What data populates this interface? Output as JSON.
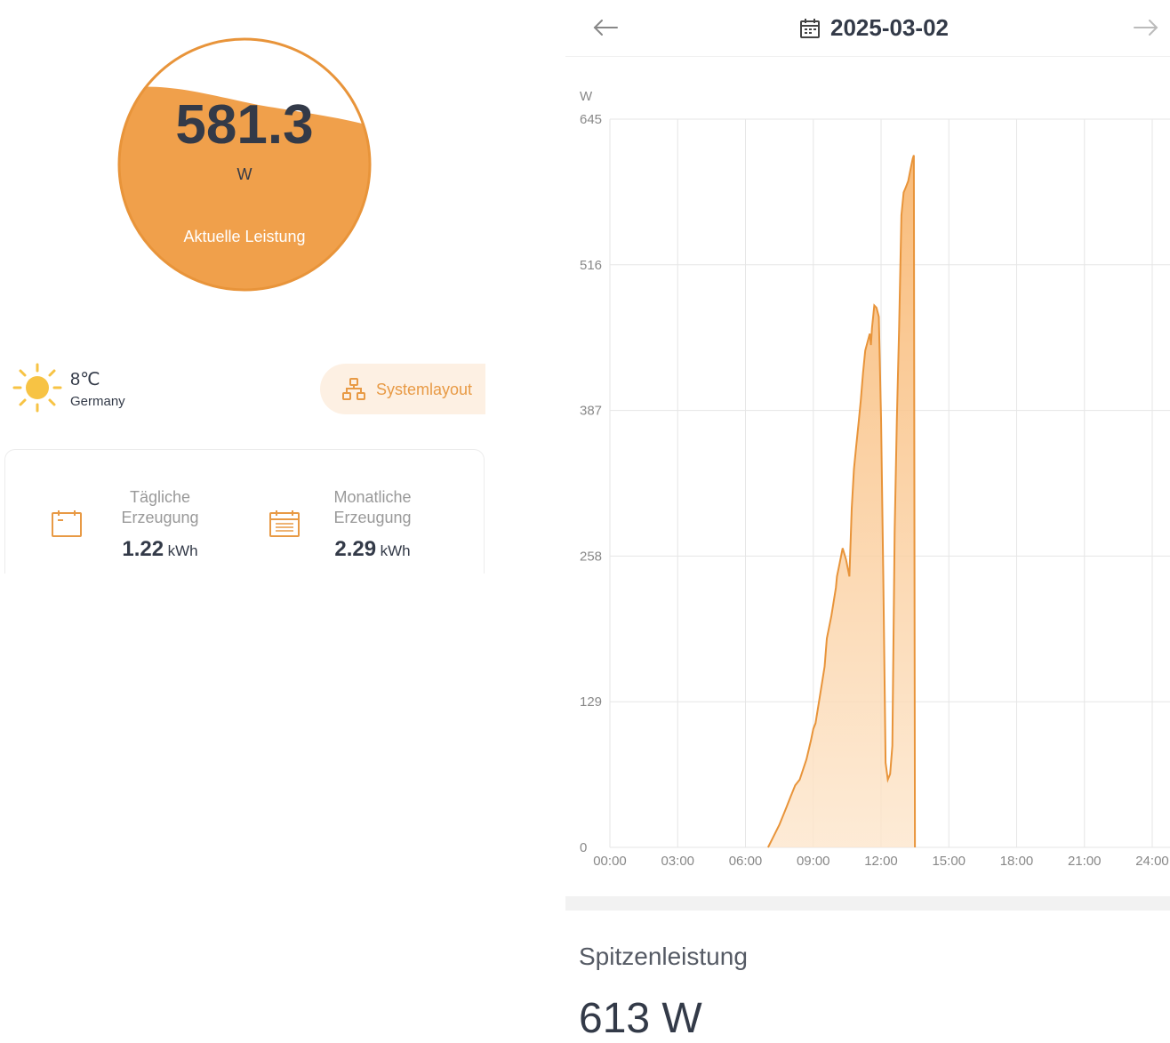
{
  "gauge": {
    "value": "581.3",
    "unit": "W",
    "caption": "Aktuelle Leistung",
    "fill_fraction": 0.9
  },
  "weather": {
    "icon": "sun-icon",
    "temperature": "8℃",
    "location": "Germany"
  },
  "system_layout_button": {
    "icon": "sitemap-icon",
    "label": "Systemlayout"
  },
  "stats": {
    "daily": {
      "icon": "calendar-day-icon",
      "label_line1": "Tägliche",
      "label_line2": "Erzeugung",
      "value": "1.22",
      "unit": "kWh"
    },
    "monthly": {
      "icon": "calendar-month-icon",
      "label_line1": "Monatliche",
      "label_line2": "Erzeugung",
      "value": "2.29",
      "unit": "kWh"
    }
  },
  "date_nav": {
    "prev_icon": "arrow-left-icon",
    "next_icon": "arrow-right-icon",
    "calendar_icon": "calendar-icon",
    "date": "2025-03-02"
  },
  "peak": {
    "label": "Spitzenleistung",
    "value": "613 W"
  },
  "colors": {
    "accent": "#f0a04b",
    "accent_dark": "#e8943a",
    "fill_light": "#fde6cc",
    "text_dark": "#333a48",
    "grid": "#e6e6e6"
  },
  "chart_data": {
    "type": "area",
    "ylabel": "W",
    "y_ticks": [
      "0",
      "129",
      "258",
      "387",
      "516",
      "645"
    ],
    "ylim": [
      0,
      645
    ],
    "x_ticks": [
      "00:00",
      "03:00",
      "06:00",
      "09:00",
      "12:00",
      "15:00",
      "18:00",
      "21:00",
      "24:00"
    ],
    "xlim": [
      0,
      24
    ],
    "grid": true,
    "series": [
      {
        "x": [
          7.0,
          7.2,
          7.5,
          7.8,
          8.0,
          8.2,
          8.4,
          8.7,
          8.9,
          9.0,
          9.1,
          9.3,
          9.5,
          9.6,
          9.8,
          10.0,
          10.05,
          10.15,
          10.3,
          10.45,
          10.6,
          10.7,
          10.8,
          10.9,
          11.0,
          11.1,
          11.2,
          11.3,
          11.5,
          11.55,
          11.6,
          11.7,
          11.8,
          11.9,
          12.0,
          12.1,
          12.2,
          12.3,
          12.4,
          12.5,
          12.6,
          12.7,
          12.8,
          12.9,
          13.0,
          13.1,
          13.2,
          13.3,
          13.4,
          13.45,
          13.5,
          13.55
        ],
        "y": [
          0,
          8,
          20,
          35,
          45,
          55,
          60,
          78,
          95,
          105,
          110,
          135,
          160,
          185,
          205,
          230,
          240,
          250,
          265,
          255,
          240,
          300,
          335,
          355,
          375,
          395,
          420,
          440,
          455,
          445,
          460,
          480,
          478,
          470,
          380,
          240,
          75,
          60,
          65,
          90,
          280,
          380,
          460,
          560,
          580,
          585,
          590,
          600,
          610,
          613,
          0,
          0
        ]
      }
    ]
  }
}
